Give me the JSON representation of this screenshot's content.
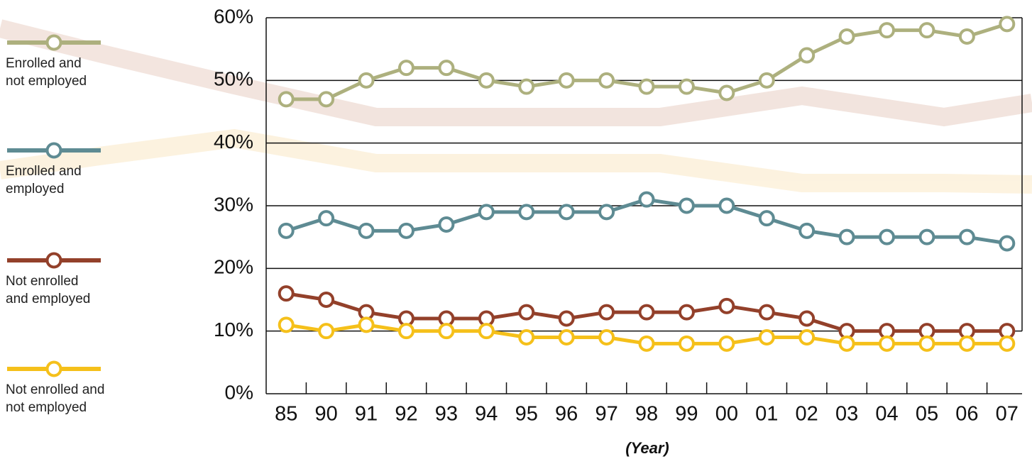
{
  "chart_data": {
    "type": "line",
    "x_label": "(Year)",
    "categories": [
      "85",
      "90",
      "91",
      "92",
      "93",
      "94",
      "95",
      "96",
      "97",
      "98",
      "99",
      "00",
      "01",
      "02",
      "03",
      "04",
      "05",
      "06",
      "07"
    ],
    "series": [
      {
        "name": "Enrolled and\nnot employed",
        "color": "#adb07e",
        "values": [
          47,
          47,
          50,
          52,
          52,
          50,
          49,
          50,
          50,
          49,
          49,
          48,
          50,
          54,
          57,
          58,
          58,
          57,
          59
        ]
      },
      {
        "name": "Enrolled and\nemployed",
        "color": "#5e8b93",
        "values": [
          26,
          28,
          26,
          26,
          27,
          29,
          29,
          29,
          29,
          31,
          30,
          30,
          28,
          26,
          25,
          25,
          25,
          25,
          24
        ]
      },
      {
        "name": "Not enrolled\nand employed",
        "color": "#93402a",
        "values": [
          16,
          15,
          13,
          12,
          12,
          12,
          13,
          12,
          13,
          13,
          13,
          14,
          13,
          12,
          10,
          10,
          10,
          10,
          10
        ]
      },
      {
        "name": "Not enrolled and\nnot employed",
        "color": "#f5c01a",
        "values": [
          11,
          10,
          11,
          10,
          10,
          10,
          9,
          9,
          9,
          8,
          8,
          8,
          9,
          9,
          8,
          8,
          8,
          8,
          8
        ]
      }
    ],
    "ylim": [
      0,
      60
    ],
    "yticks": [
      {
        "value": 0,
        "label": "0%"
      },
      {
        "value": 10,
        "label": "10%"
      },
      {
        "value": 20,
        "label": "20%"
      },
      {
        "value": 30,
        "label": "30%"
      },
      {
        "value": 40,
        "label": "40%"
      },
      {
        "value": 50,
        "label": "50%"
      },
      {
        "value": 60,
        "label": "60%"
      }
    ],
    "grid": true,
    "legend": "left"
  }
}
